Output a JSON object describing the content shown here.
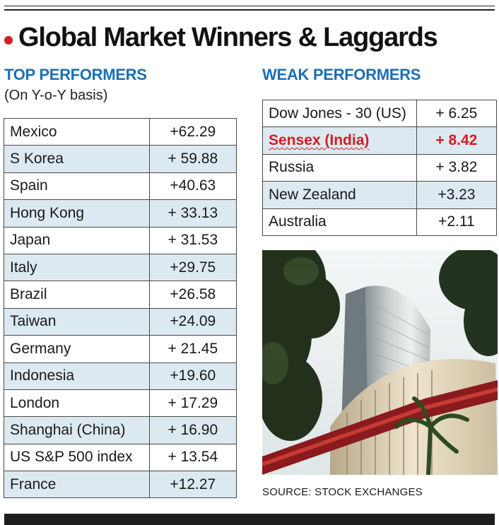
{
  "headline": "Global Market Winners & Laggards",
  "top_performers": {
    "heading": "TOP PERFORMERS",
    "subheading": "(On Y-o-Y basis)",
    "rows": [
      {
        "name": "Mexico",
        "value": "+62.29"
      },
      {
        "name": "S Korea",
        "value": "+ 59.88"
      },
      {
        "name": "Spain",
        "value": "+40.63"
      },
      {
        "name": "Hong Kong",
        "value": "+ 33.13"
      },
      {
        "name": "Japan",
        "value": "+ 31.53"
      },
      {
        "name": "Italy",
        "value": "+29.75"
      },
      {
        "name": "Brazil",
        "value": "+26.58"
      },
      {
        "name": "Taiwan",
        "value": "+24.09"
      },
      {
        "name": "Germany",
        "value": "+ 21.45"
      },
      {
        "name": "Indonesia",
        "value": "+19.60"
      },
      {
        "name": "London",
        "value": "+ 17.29"
      },
      {
        "name": "Shanghai (China)",
        "value": "+ 16.90"
      },
      {
        "name": "US S&P 500 index",
        "value": "+ 13.54"
      },
      {
        "name": "France",
        "value": "+12.27"
      }
    ]
  },
  "weak_performers": {
    "heading": "WEAK PERFORMERS",
    "highlight_color": "#d21f24",
    "rows": [
      {
        "name": "Dow Jones - 30 (US)",
        "value": "+ 6.25"
      },
      {
        "name": "Sensex (India)",
        "value": "+ 8.42"
      },
      {
        "name": "Russia",
        "value": "+ 3.82"
      },
      {
        "name": "New Zealand",
        "value": "+3.23"
      },
      {
        "name": "Australia",
        "value": "+2.11"
      }
    ]
  },
  "source": "SOURCE: STOCK EXCHANGES",
  "colors": {
    "heading_blue": "#1c6fb3",
    "row_shade": "#dde9f1",
    "accent_red": "#d21f24"
  }
}
